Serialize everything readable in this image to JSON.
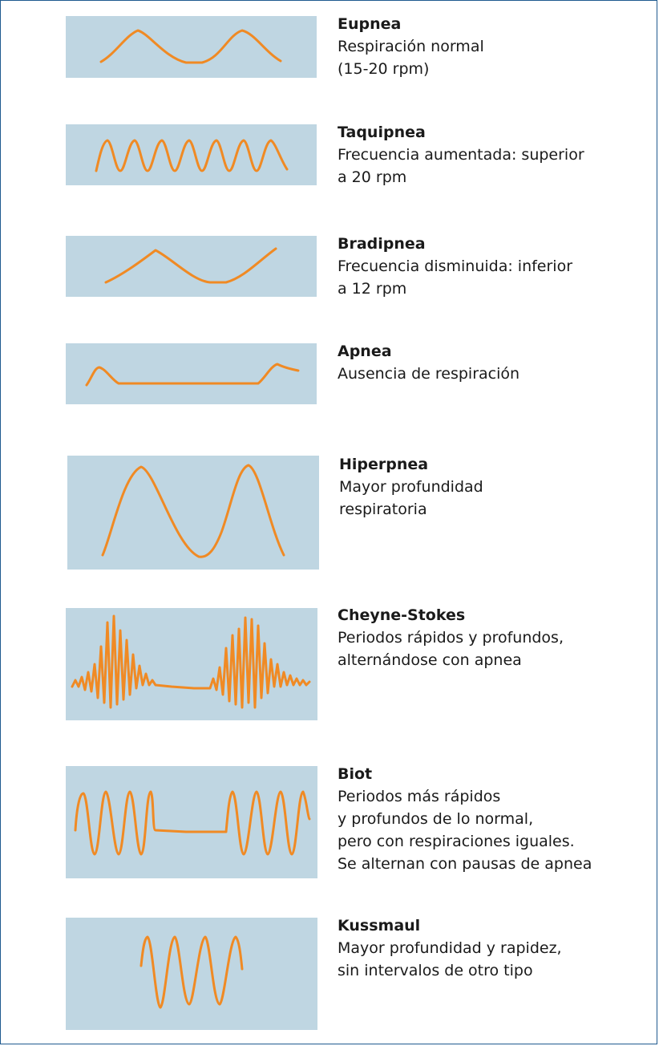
{
  "colors": {
    "panel": "#bfd6e2",
    "wave": "#f08a24",
    "border": "#1f5a8f"
  },
  "patterns": [
    {
      "id": "eupnea",
      "title": "Eupnea",
      "lines": [
        "Respiración normal",
        "(15-20 rpm)"
      ]
    },
    {
      "id": "taquipnea",
      "title": "Taquipnea",
      "lines": [
        "Frecuencia aumentada: superior",
        "a 20 rpm"
      ]
    },
    {
      "id": "bradipnea",
      "title": "Bradipnea",
      "lines": [
        "Frecuencia disminuida: inferior",
        "a 12 rpm"
      ]
    },
    {
      "id": "apnea",
      "title": "Apnea",
      "lines": [
        "Ausencia de respiración"
      ]
    },
    {
      "id": "hiperpnea",
      "title": "Hiperpnea",
      "lines": [
        "Mayor profundidad",
        "respiratoria"
      ]
    },
    {
      "id": "cheyne-stokes",
      "title": "Cheyne-Stokes",
      "lines": [
        "Periodos rápidos y profundos,",
        "alternándose con apnea"
      ]
    },
    {
      "id": "biot",
      "title": "Biot",
      "lines": [
        "Periodos más rápidos",
        "y profundos de lo normal,",
        "pero con respiraciones iguales.",
        "Se alternan con pausas de apnea"
      ]
    },
    {
      "id": "kussmaul",
      "title": "Kussmaul",
      "lines": [
        "Mayor profundidad y rapidez,",
        "sin intervalos de otro tipo"
      ]
    }
  ]
}
